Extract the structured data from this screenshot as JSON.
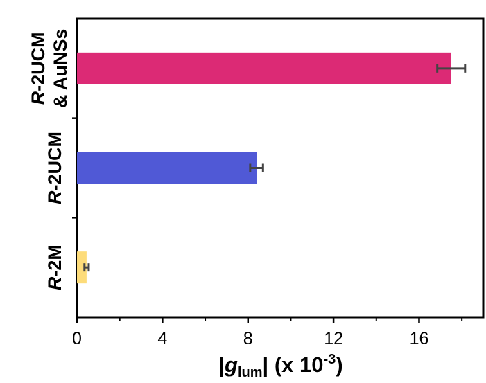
{
  "chart_data": {
    "type": "bar",
    "orientation": "horizontal",
    "categories": [
      {
        "prefix": "R",
        "text": "-2UCM",
        "line2": "& AuNSs"
      },
      {
        "prefix": "R",
        "text": "-2UCM",
        "line2": ""
      },
      {
        "prefix": "R",
        "text": "-2M",
        "line2": ""
      }
    ],
    "values": [
      17.5,
      8.4,
      0.45
    ],
    "errors": [
      0.65,
      0.3,
      0.1
    ],
    "colors": [
      "#dc2a75",
      "#5059d6",
      "#fddc7a"
    ],
    "xlabel": {
      "pre": "|",
      "g": "g",
      "sub": "lum",
      "post": "|",
      "unit": " (x 10",
      "exp": "-3",
      "close": ")"
    },
    "xlim": [
      0,
      19
    ],
    "xticks": [
      "0",
      "4",
      "8",
      "12",
      "16"
    ],
    "xtick_values": [
      0,
      4,
      8,
      12,
      16
    ],
    "grid": false,
    "legend": "none"
  }
}
